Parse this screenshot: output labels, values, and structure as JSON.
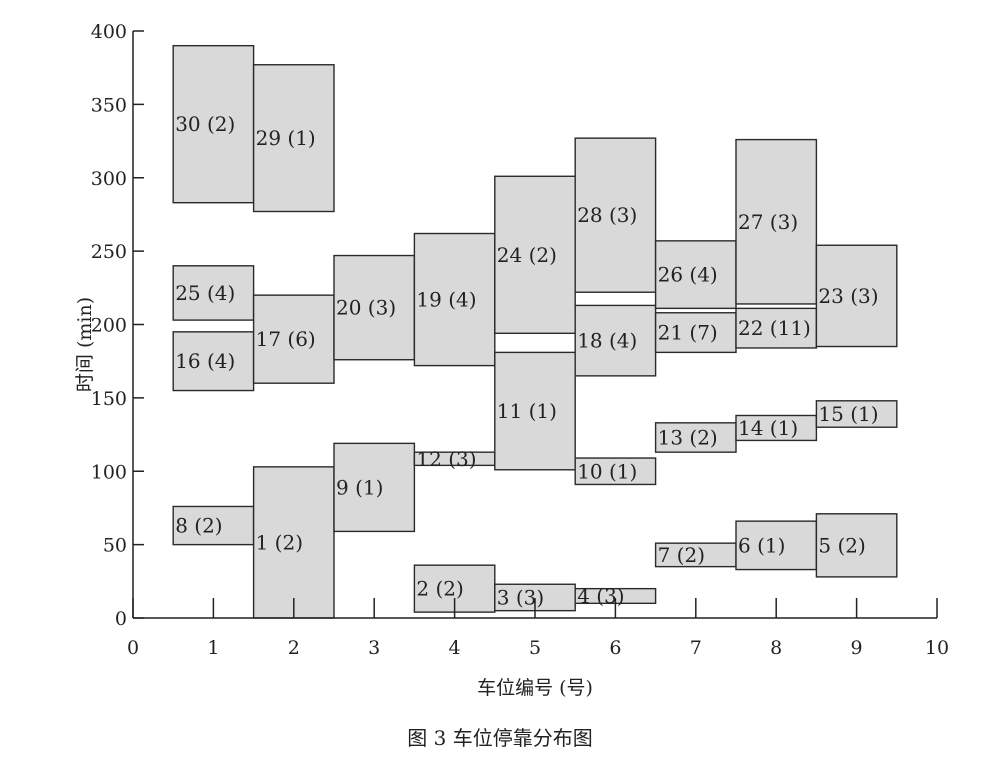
{
  "caption": "图 3  车位停靠分布图",
  "chart_data": {
    "type": "bar",
    "xlabel": "车位编号 (号)",
    "ylabel": "时间 (min)",
    "xlim": [
      0,
      10
    ],
    "ylim": [
      0,
      400
    ],
    "x_ticks": [
      0,
      1,
      2,
      3,
      4,
      5,
      6,
      7,
      8,
      9,
      10
    ],
    "y_ticks": [
      0,
      50,
      100,
      150,
      200,
      250,
      300,
      350,
      400
    ],
    "grid": false,
    "legend": "none",
    "bars": [
      {
        "label": "30 (2)",
        "x0": 0.5,
        "x1": 1.5,
        "y0": 283,
        "y1": 390
      },
      {
        "label": "25 (4)",
        "x0": 0.5,
        "x1": 1.5,
        "y0": 203,
        "y1": 240
      },
      {
        "label": "16 (4)",
        "x0": 0.5,
        "x1": 1.5,
        "y0": 155,
        "y1": 195
      },
      {
        "label": "8 (2)",
        "x0": 0.5,
        "x1": 1.5,
        "y0": 50,
        "y1": 76
      },
      {
        "label": "29 (1)",
        "x0": 1.5,
        "x1": 2.5,
        "y0": 277,
        "y1": 377
      },
      {
        "label": "17 (6)",
        "x0": 1.5,
        "x1": 2.5,
        "y0": 160,
        "y1": 220
      },
      {
        "label": "1 (2)",
        "x0": 1.5,
        "x1": 2.5,
        "y0": 0,
        "y1": 103
      },
      {
        "label": "20 (3)",
        "x0": 2.5,
        "x1": 3.5,
        "y0": 176,
        "y1": 247
      },
      {
        "label": "9 (1)",
        "x0": 2.5,
        "x1": 3.5,
        "y0": 59,
        "y1": 119
      },
      {
        "label": "19 (4)",
        "x0": 3.5,
        "x1": 4.5,
        "y0": 172,
        "y1": 262
      },
      {
        "label": "12 (3)",
        "x0": 3.5,
        "x1": 4.5,
        "y0": 104,
        "y1": 113
      },
      {
        "label": "2 (2)",
        "x0": 3.5,
        "x1": 4.5,
        "y0": 4,
        "y1": 36
      },
      {
        "label": "24 (2)",
        "x0": 4.5,
        "x1": 5.5,
        "y0": 194,
        "y1": 301
      },
      {
        "label": "11 (1)",
        "x0": 4.5,
        "x1": 5.5,
        "y0": 101,
        "y1": 181
      },
      {
        "label": "3 (3)",
        "x0": 4.5,
        "x1": 5.5,
        "y0": 5,
        "y1": 23
      },
      {
        "label": "28 (3)",
        "x0": 5.5,
        "x1": 6.5,
        "y0": 222,
        "y1": 327
      },
      {
        "label": "18 (4)",
        "x0": 5.5,
        "x1": 6.5,
        "y0": 165,
        "y1": 213
      },
      {
        "label": "10 (1)",
        "x0": 5.5,
        "x1": 6.5,
        "y0": 91,
        "y1": 109
      },
      {
        "label": "4 (3)",
        "x0": 5.5,
        "x1": 6.5,
        "y0": 10,
        "y1": 20
      },
      {
        "label": "26 (4)",
        "x0": 6.5,
        "x1": 7.5,
        "y0": 211,
        "y1": 257
      },
      {
        "label": "21 (7)",
        "x0": 6.5,
        "x1": 7.5,
        "y0": 181,
        "y1": 208
      },
      {
        "label": "13 (2)",
        "x0": 6.5,
        "x1": 7.5,
        "y0": 113,
        "y1": 133
      },
      {
        "label": "7 (2)",
        "x0": 6.5,
        "x1": 7.5,
        "y0": 35,
        "y1": 51
      },
      {
        "label": "27 (3)",
        "x0": 7.5,
        "x1": 8.5,
        "y0": 214,
        "y1": 326
      },
      {
        "label": "22 (11)",
        "x0": 7.5,
        "x1": 8.5,
        "y0": 184,
        "y1": 211
      },
      {
        "label": "14 (1)",
        "x0": 7.5,
        "x1": 8.5,
        "y0": 121,
        "y1": 138
      },
      {
        "label": "6 (1)",
        "x0": 7.5,
        "x1": 8.5,
        "y0": 33,
        "y1": 66
      },
      {
        "label": "23 (3)",
        "x0": 8.5,
        "x1": 9.5,
        "y0": 185,
        "y1": 254
      },
      {
        "label": "15 (1)",
        "x0": 8.5,
        "x1": 9.5,
        "y0": 130,
        "y1": 148
      },
      {
        "label": "5 (2)",
        "x0": 8.5,
        "x1": 9.5,
        "y0": 28,
        "y1": 71
      }
    ]
  }
}
